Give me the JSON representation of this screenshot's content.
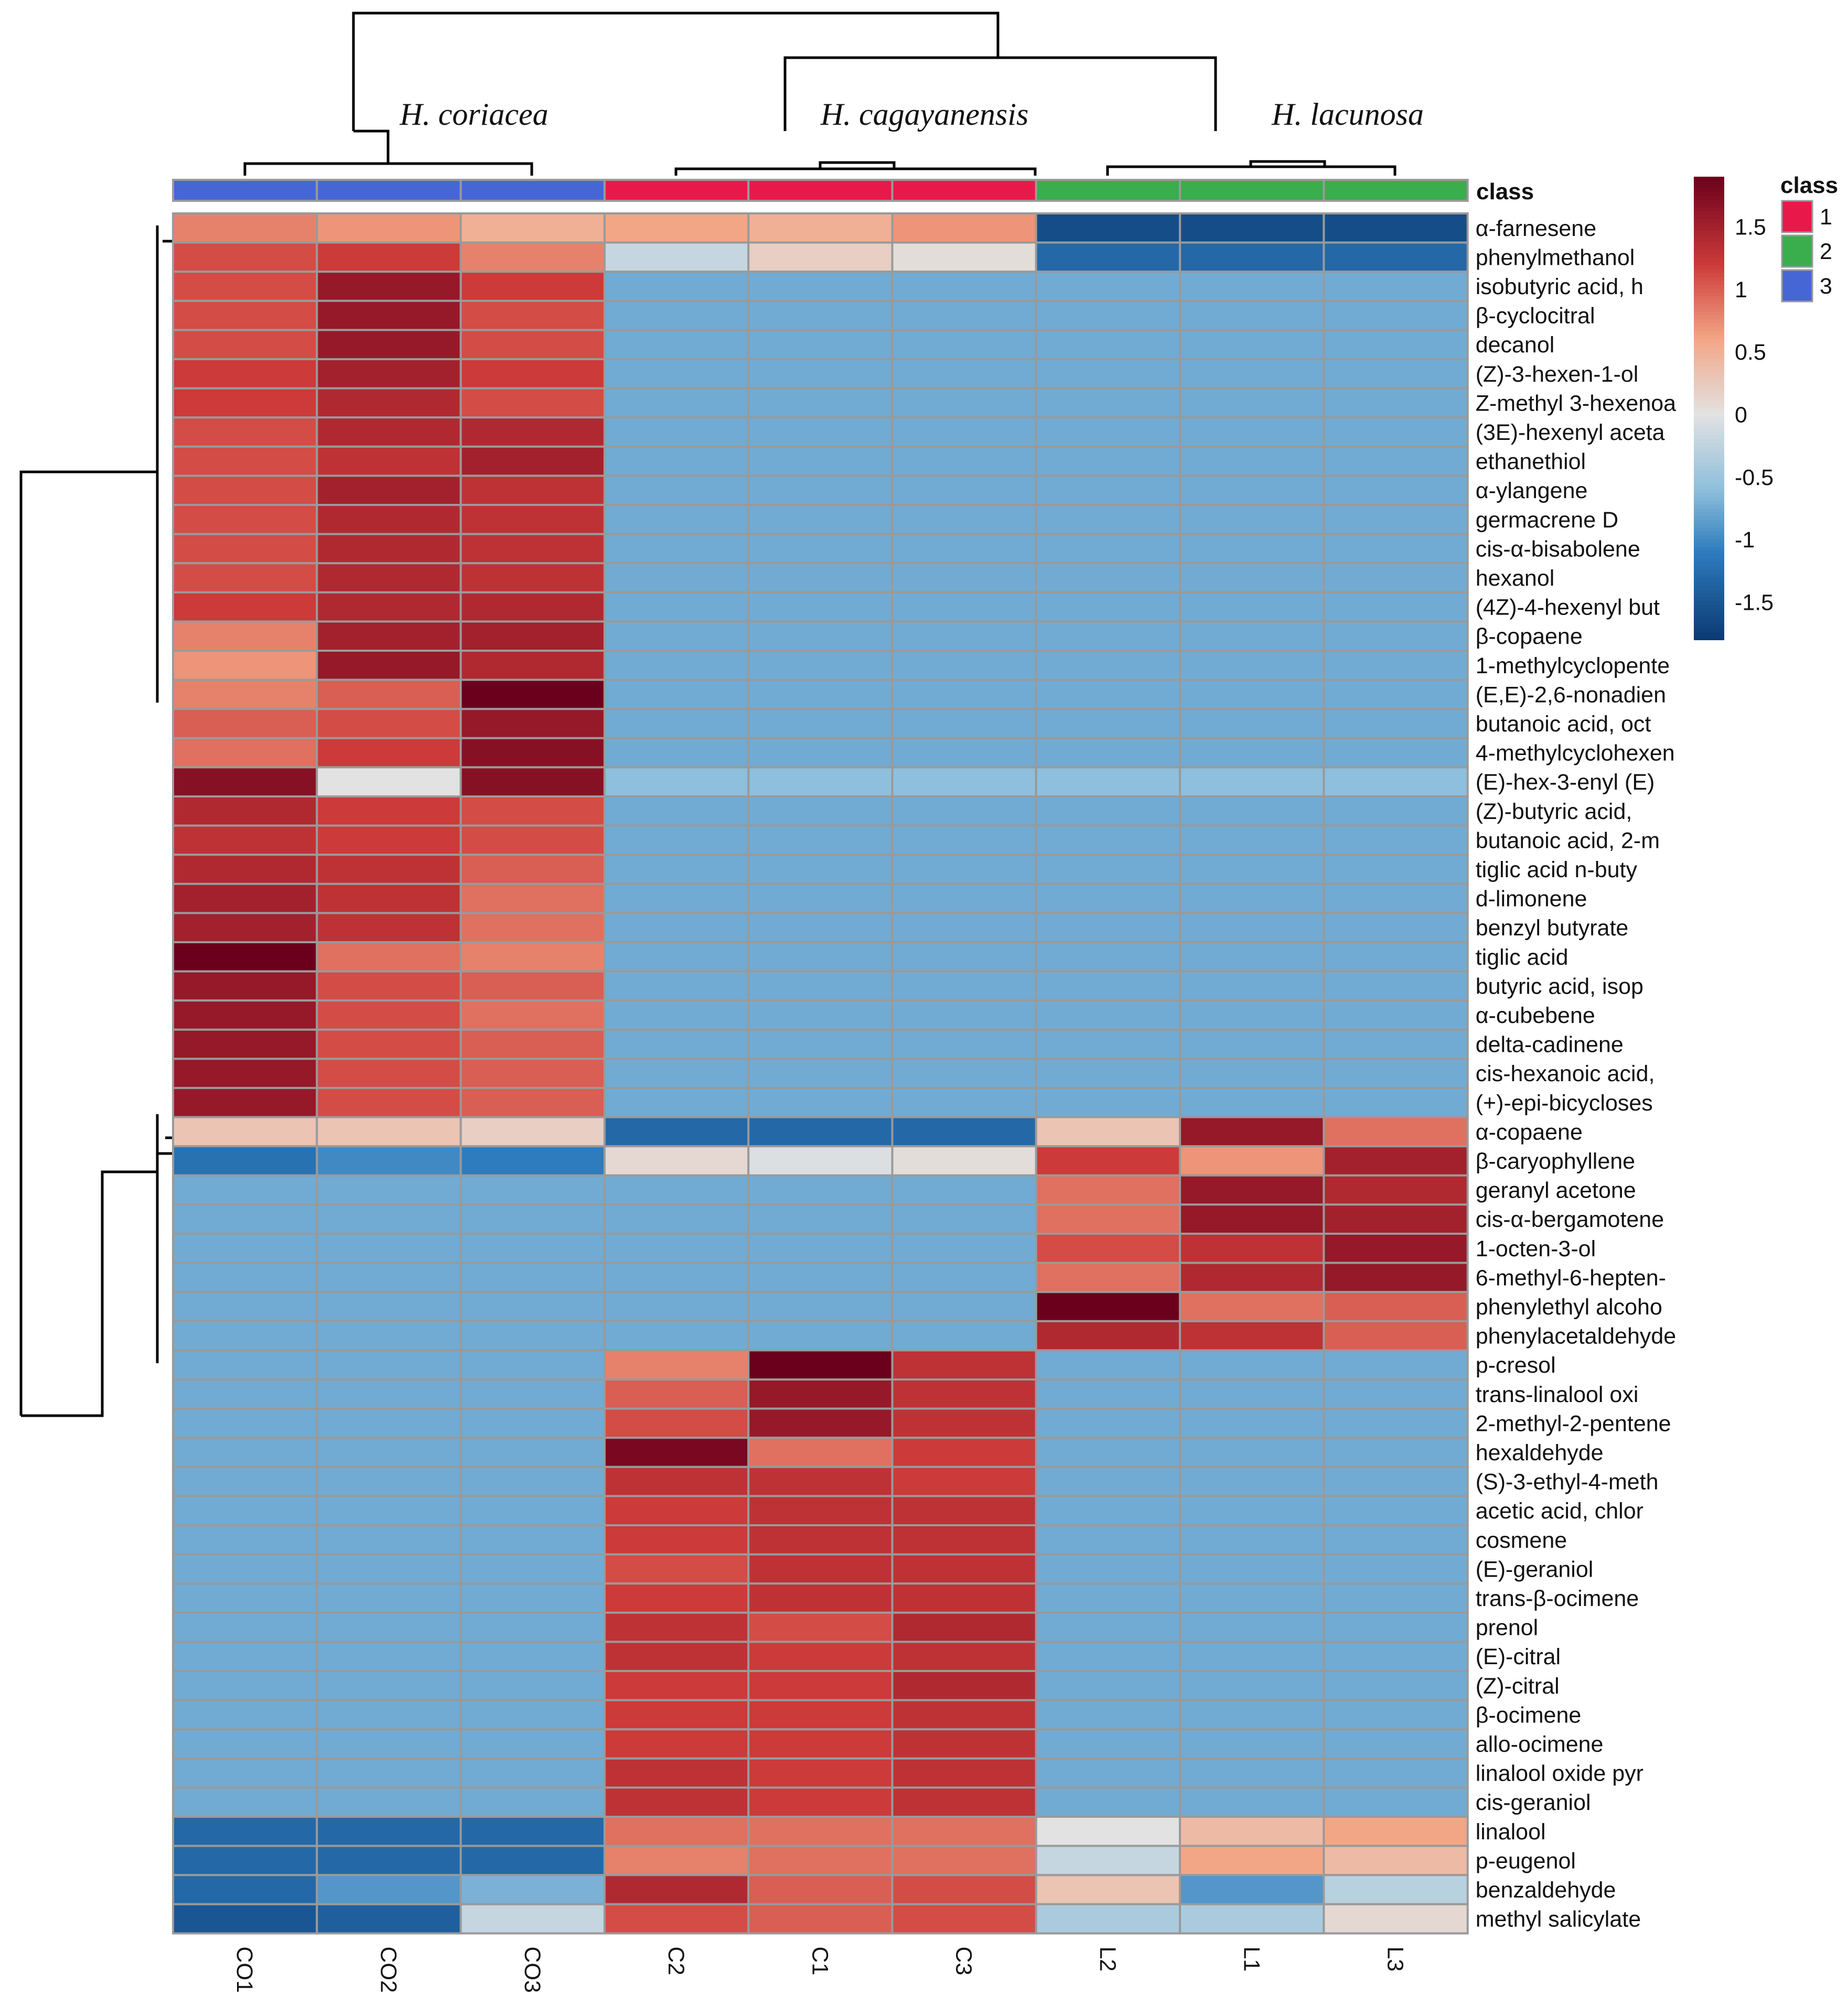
{
  "chart_data": {
    "type": "heatmap",
    "title": "",
    "species_labels": [
      "H. coriacea",
      "H. cagayanensis",
      "H. lacunosa"
    ],
    "columns": [
      "CO1",
      "CO2",
      "CO3",
      "C2",
      "C1",
      "C3",
      "L2",
      "L1",
      "L3"
    ],
    "column_class": [
      3,
      3,
      3,
      1,
      1,
      1,
      2,
      2,
      2
    ],
    "rows": [
      "α-farnesene",
      "phenylmethanol",
      "isobutyric acid, h",
      "β-cyclocitral",
      "decanol",
      "(Z)-3-hexen-1-ol",
      "Z-methyl 3-hexenoa",
      "(3E)-hexenyl aceta",
      "ethanethiol",
      "α-ylangene",
      "germacrene D",
      "cis-α-bisabolene",
      "hexanol",
      "(4Z)-4-hexenyl but",
      "β-copaene",
      "1-methylcyclopente",
      "(E,E)-2,6-nonadien",
      "butanoic acid, oct",
      "4-methylcyclohexen",
      "(E)-hex-3-enyl (E)",
      "(Z)-butyric acid,",
      "butanoic acid, 2-m",
      "tiglic acid n-buty",
      "d-limonene",
      "benzyl butyrate",
      "tiglic acid",
      "butyric acid, isop",
      "α-cubebene",
      "delta-cadinene",
      "cis-hexanoic acid,",
      "(+)-epi-bicycloses",
      "α-copaene",
      "β-caryophyllene",
      "geranyl acetone",
      "cis-α-bergamotene",
      "1-octen-3-ol",
      "6-methyl-6-hepten-",
      "phenylethyl alcoho",
      "phenylacetaldehyde",
      "p-cresol",
      "trans-linalool oxi",
      "2-methyl-2-pentene",
      "hexaldehyde",
      "(S)-3-ethyl-4-meth",
      "acetic acid, chlor",
      "cosmene",
      "(E)-geraniol",
      "trans-β-ocimene",
      "prenol",
      "(E)-citral",
      "(Z)-citral",
      "β-ocimene",
      "allo-ocimene",
      "linalool oxide pyr",
      "cis-geraniol",
      "linalool",
      "p-eugenol",
      "benzaldehyde",
      "methyl salicylate"
    ],
    "values": [
      [
        0.8,
        0.7,
        0.5,
        0.6,
        0.5,
        0.7,
        -1.6,
        -1.6,
        -1.6
      ],
      [
        1.1,
        1.2,
        0.8,
        -0.2,
        0.2,
        0.05,
        -1.3,
        -1.3,
        -1.3
      ],
      [
        1.1,
        1.6,
        1.2,
        -0.75,
        -0.75,
        -0.75,
        -0.75,
        -0.75,
        -0.75
      ],
      [
        1.1,
        1.6,
        1.1,
        -0.75,
        -0.75,
        -0.75,
        -0.75,
        -0.75,
        -0.75
      ],
      [
        1.1,
        1.6,
        1.1,
        -0.75,
        -0.75,
        -0.75,
        -0.75,
        -0.75,
        -0.75
      ],
      [
        1.2,
        1.5,
        1.2,
        -0.75,
        -0.75,
        -0.75,
        -0.75,
        -0.75,
        -0.75
      ],
      [
        1.2,
        1.4,
        1.1,
        -0.75,
        -0.75,
        -0.75,
        -0.75,
        -0.75,
        -0.75
      ],
      [
        1.1,
        1.4,
        1.4,
        -0.75,
        -0.75,
        -0.75,
        -0.75,
        -0.75,
        -0.75
      ],
      [
        1.1,
        1.3,
        1.5,
        -0.75,
        -0.75,
        -0.75,
        -0.75,
        -0.75,
        -0.75
      ],
      [
        1.1,
        1.5,
        1.3,
        -0.75,
        -0.75,
        -0.75,
        -0.75,
        -0.75,
        -0.75
      ],
      [
        1.1,
        1.4,
        1.3,
        -0.75,
        -0.75,
        -0.75,
        -0.75,
        -0.75,
        -0.75
      ],
      [
        1.1,
        1.4,
        1.3,
        -0.75,
        -0.75,
        -0.75,
        -0.75,
        -0.75,
        -0.75
      ],
      [
        1.1,
        1.4,
        1.3,
        -0.75,
        -0.75,
        -0.75,
        -0.75,
        -0.75,
        -0.75
      ],
      [
        1.2,
        1.4,
        1.4,
        -0.75,
        -0.75,
        -0.75,
        -0.75,
        -0.75,
        -0.75
      ],
      [
        0.8,
        1.5,
        1.5,
        -0.75,
        -0.75,
        -0.75,
        -0.75,
        -0.75,
        -0.75
      ],
      [
        0.7,
        1.6,
        1.4,
        -0.75,
        -0.75,
        -0.75,
        -0.75,
        -0.75,
        -0.75
      ],
      [
        0.8,
        1.0,
        1.9,
        -0.75,
        -0.75,
        -0.75,
        -0.75,
        -0.75,
        -0.75
      ],
      [
        1.0,
        1.1,
        1.6,
        -0.75,
        -0.75,
        -0.75,
        -0.75,
        -0.75,
        -0.75
      ],
      [
        0.9,
        1.2,
        1.7,
        -0.75,
        -0.75,
        -0.75,
        -0.75,
        -0.75,
        -0.75
      ],
      [
        1.7,
        0.0,
        1.7,
        -0.6,
        -0.6,
        -0.6,
        -0.6,
        -0.6,
        -0.6
      ],
      [
        1.4,
        1.2,
        1.1,
        -0.75,
        -0.75,
        -0.75,
        -0.75,
        -0.75,
        -0.75
      ],
      [
        1.3,
        1.2,
        1.1,
        -0.75,
        -0.75,
        -0.75,
        -0.75,
        -0.75,
        -0.75
      ],
      [
        1.4,
        1.3,
        1.0,
        -0.75,
        -0.75,
        -0.75,
        -0.75,
        -0.75,
        -0.75
      ],
      [
        1.5,
        1.3,
        0.9,
        -0.75,
        -0.75,
        -0.75,
        -0.75,
        -0.75,
        -0.75
      ],
      [
        1.5,
        1.3,
        0.9,
        -0.75,
        -0.75,
        -0.75,
        -0.75,
        -0.75,
        -0.75
      ],
      [
        1.9,
        0.9,
        0.8,
        -0.75,
        -0.75,
        -0.75,
        -0.75,
        -0.75,
        -0.75
      ],
      [
        1.6,
        1.1,
        1.0,
        -0.75,
        -0.75,
        -0.75,
        -0.75,
        -0.75,
        -0.75
      ],
      [
        1.6,
        1.1,
        0.9,
        -0.75,
        -0.75,
        -0.75,
        -0.75,
        -0.75,
        -0.75
      ],
      [
        1.6,
        1.1,
        1.0,
        -0.75,
        -0.75,
        -0.75,
        -0.75,
        -0.75,
        -0.75
      ],
      [
        1.6,
        1.1,
        1.0,
        -0.75,
        -0.75,
        -0.75,
        -0.75,
        -0.75,
        -0.75
      ],
      [
        1.6,
        1.1,
        1.0,
        -0.75,
        -0.75,
        -0.75,
        -0.75,
        -0.75,
        -0.75
      ],
      [
        0.3,
        0.3,
        0.2,
        -1.3,
        -1.3,
        -1.3,
        0.3,
        1.6,
        0.9
      ],
      [
        -1.2,
        -1.0,
        -1.1,
        0.1,
        -0.05,
        0.05,
        1.2,
        0.7,
        1.5
      ],
      [
        -0.75,
        -0.75,
        -0.75,
        -0.75,
        -0.75,
        -0.75,
        0.9,
        1.6,
        1.4
      ],
      [
        -0.75,
        -0.75,
        -0.75,
        -0.75,
        -0.75,
        -0.75,
        0.9,
        1.6,
        1.5
      ],
      [
        -0.75,
        -0.75,
        -0.75,
        -0.75,
        -0.75,
        -0.75,
        1.1,
        1.3,
        1.6
      ],
      [
        -0.75,
        -0.75,
        -0.75,
        -0.75,
        -0.75,
        -0.75,
        0.9,
        1.4,
        1.6
      ],
      [
        -0.75,
        -0.75,
        -0.75,
        -0.75,
        -0.75,
        -0.75,
        1.9,
        0.9,
        1.0
      ],
      [
        -0.75,
        -0.75,
        -0.75,
        -0.75,
        -0.75,
        -0.75,
        1.4,
        1.3,
        1.0
      ],
      [
        -0.75,
        -0.75,
        -0.75,
        0.8,
        1.9,
        1.3,
        -0.75,
        -0.75,
        -0.75
      ],
      [
        -0.75,
        -0.75,
        -0.75,
        1.0,
        1.6,
        1.3,
        -0.75,
        -0.75,
        -0.75
      ],
      [
        -0.75,
        -0.75,
        -0.75,
        1.1,
        1.6,
        1.3,
        -0.75,
        -0.75,
        -0.75
      ],
      [
        -0.75,
        -0.75,
        -0.75,
        1.8,
        0.9,
        1.2,
        -0.75,
        -0.75,
        -0.75
      ],
      [
        -0.75,
        -0.75,
        -0.75,
        1.3,
        1.3,
        1.2,
        -0.75,
        -0.75,
        -0.75
      ],
      [
        -0.75,
        -0.75,
        -0.75,
        1.2,
        1.3,
        1.3,
        -0.75,
        -0.75,
        -0.75
      ],
      [
        -0.75,
        -0.75,
        -0.75,
        1.2,
        1.3,
        1.3,
        -0.75,
        -0.75,
        -0.75
      ],
      [
        -0.75,
        -0.75,
        -0.75,
        1.1,
        1.3,
        1.3,
        -0.75,
        -0.75,
        -0.75
      ],
      [
        -0.75,
        -0.75,
        -0.75,
        1.2,
        1.3,
        1.3,
        -0.75,
        -0.75,
        -0.75
      ],
      [
        -0.75,
        -0.75,
        -0.75,
        1.3,
        1.1,
        1.4,
        -0.75,
        -0.75,
        -0.75
      ],
      [
        -0.75,
        -0.75,
        -0.75,
        1.3,
        1.2,
        1.3,
        -0.75,
        -0.75,
        -0.75
      ],
      [
        -0.75,
        -0.75,
        -0.75,
        1.2,
        1.2,
        1.4,
        -0.75,
        -0.75,
        -0.75
      ],
      [
        -0.75,
        -0.75,
        -0.75,
        1.2,
        1.2,
        1.3,
        -0.75,
        -0.75,
        -0.75
      ],
      [
        -0.75,
        -0.75,
        -0.75,
        1.2,
        1.2,
        1.3,
        -0.75,
        -0.75,
        -0.75
      ],
      [
        -0.75,
        -0.75,
        -0.75,
        1.3,
        1.2,
        1.3,
        -0.75,
        -0.75,
        -0.75
      ],
      [
        -0.75,
        -0.75,
        -0.75,
        1.3,
        1.2,
        1.3,
        -0.75,
        -0.75,
        -0.75
      ],
      [
        -1.3,
        -1.3,
        -1.3,
        0.9,
        0.9,
        0.9,
        0.0,
        0.4,
        0.6
      ],
      [
        -1.3,
        -1.3,
        -1.3,
        0.8,
        0.9,
        0.9,
        -0.2,
        0.6,
        0.4
      ],
      [
        -1.3,
        -0.9,
        -0.7,
        1.4,
        1.0,
        1.1,
        0.3,
        -0.9,
        -0.3
      ],
      [
        -1.5,
        -1.4,
        -0.2,
        1.1,
        1.0,
        1.1,
        -0.4,
        -0.4,
        0.1
      ]
    ],
    "color_scale": {
      "min": -1.8,
      "max": 1.9,
      "ticks": [
        "1.5",
        "1",
        "0.5",
        "0",
        "-0.5",
        "-1",
        "-1.5"
      ],
      "tick_values": [
        1.5,
        1,
        0.5,
        0,
        -0.5,
        -1,
        -1.5
      ],
      "stops": [
        {
          "v": -1.8,
          "c": "#0b3a73"
        },
        {
          "v": -1.1,
          "c": "#2e7bbd"
        },
        {
          "v": -0.6,
          "c": "#8ebfdc"
        },
        {
          "v": 0.0,
          "c": "#e2e2e2"
        },
        {
          "v": 0.6,
          "c": "#f3a686"
        },
        {
          "v": 1.2,
          "c": "#cc3a39"
        },
        {
          "v": 1.9,
          "c": "#6b001c"
        }
      ]
    },
    "legend": {
      "title": "class",
      "entries": [
        {
          "label": "1",
          "color": "#e8194a"
        },
        {
          "label": "2",
          "color": "#3aad4c"
        },
        {
          "label": "3",
          "color": "#4766d6"
        }
      ]
    },
    "class_track_label": "class"
  }
}
